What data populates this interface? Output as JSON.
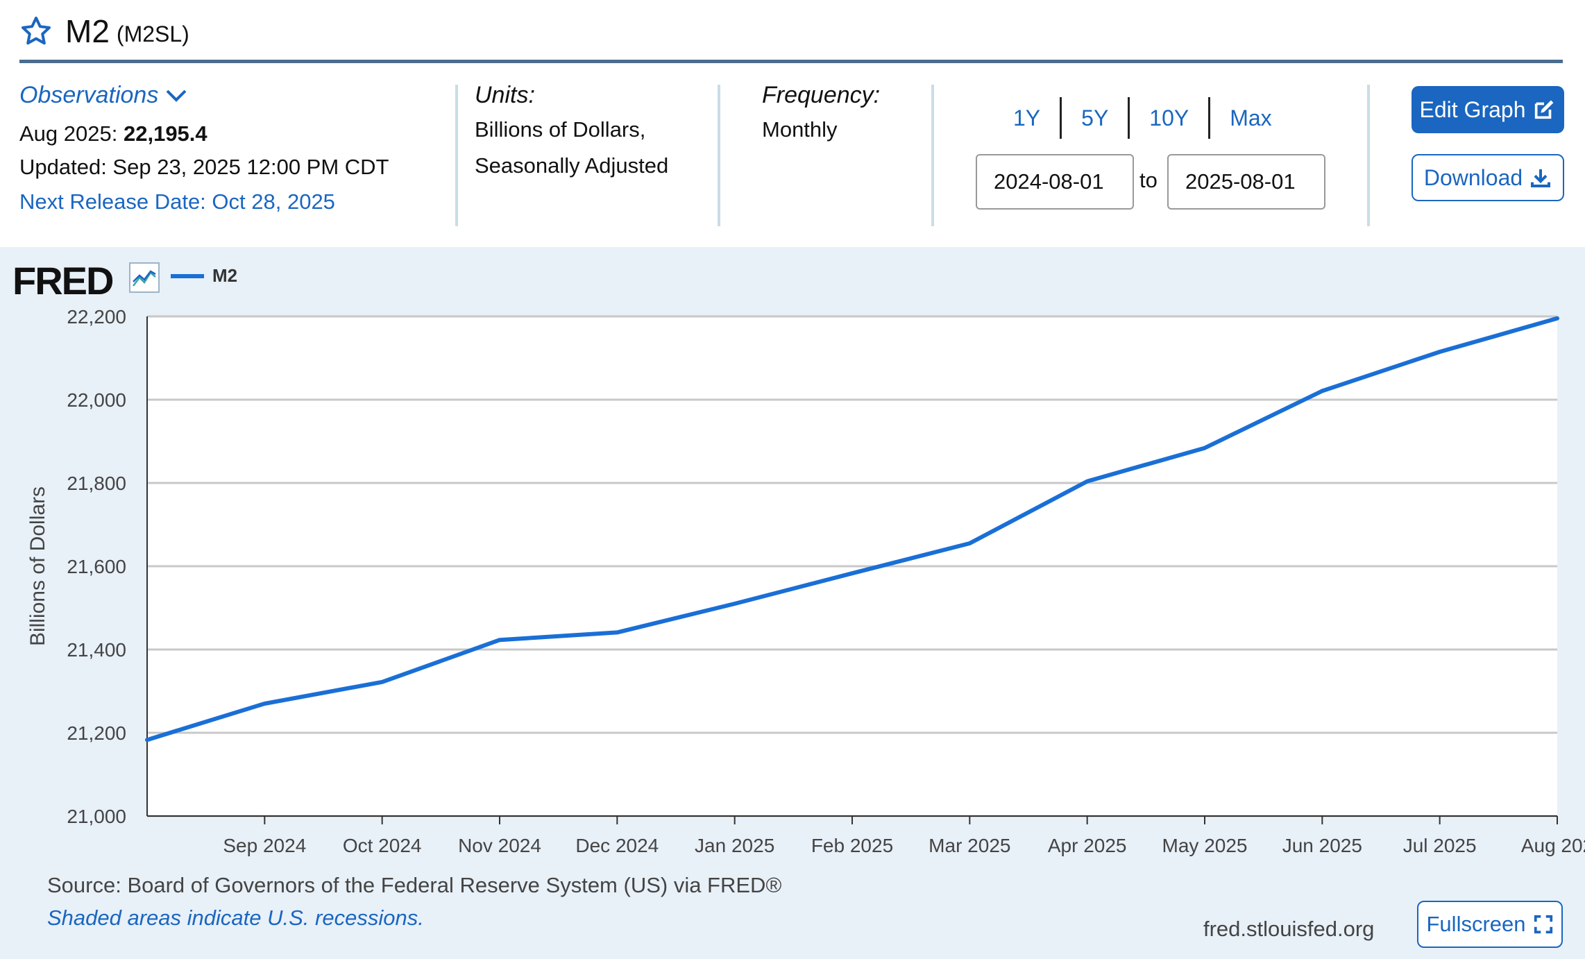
{
  "header": {
    "title": "M2",
    "series_id": "(M2SL)"
  },
  "observations": {
    "toggle_label": "Observations",
    "date_label": "Aug 2025:",
    "value": "22,195.4",
    "updated": "Updated: Sep 23, 2025 12:00 PM CDT",
    "next_release": "Next Release Date: Oct 28, 2025"
  },
  "units": {
    "heading": "Units:",
    "line1": "Billions of Dollars,",
    "line2": "Seasonally Adjusted"
  },
  "frequency": {
    "heading": "Frequency:",
    "value": "Monthly"
  },
  "ranges": [
    "1Y",
    "5Y",
    "10Y",
    "Max"
  ],
  "date_range": {
    "start": "2024-08-01",
    "to_label": "to",
    "end": "2025-08-01"
  },
  "buttons": {
    "edit_graph": "Edit Graph",
    "download": "Download",
    "fullscreen": "Fullscreen"
  },
  "graph": {
    "logo": "FRED",
    "legend": "M2",
    "source": "Source: Board of Governors of the Federal Reserve System (US) via FRED®",
    "recession_note": "Shaded areas indicate U.S. recessions.",
    "site": "fred.stlouisfed.org"
  },
  "colors": {
    "accent": "#1a66c0",
    "series": "#1a6fd6",
    "graph_bg": "#e8f0f8"
  },
  "chart_data": {
    "type": "line",
    "title": "",
    "xlabel": "",
    "ylabel": "Billions of Dollars",
    "ylim": [
      21000,
      22200
    ],
    "yticks": [
      21000,
      21200,
      21400,
      21600,
      21800,
      22000,
      22200
    ],
    "ytick_labels": [
      "21,000",
      "21,200",
      "21,400",
      "21,600",
      "21,800",
      "22,000",
      "22,200"
    ],
    "x": [
      "2024-08-01",
      "2024-09-01",
      "2024-10-01",
      "2024-11-01",
      "2024-12-01",
      "2025-01-01",
      "2025-02-01",
      "2025-03-01",
      "2025-04-01",
      "2025-05-01",
      "2025-06-01",
      "2025-07-01",
      "2025-08-01"
    ],
    "xtick_labels": [
      "Sep 2024",
      "Oct 2024",
      "Nov 2024",
      "Dec 2024",
      "Jan 2025",
      "Feb 2025",
      "Mar 2025",
      "Apr 2025",
      "May 2025",
      "Jun 2025",
      "Jul 2025",
      "Aug 202"
    ],
    "series": [
      {
        "name": "M2",
        "values": [
          21183.0,
          21270.0,
          21322.0,
          21423.0,
          21441.0,
          21510.0,
          21583.0,
          21655.0,
          21804.0,
          21884.0,
          22021.0,
          22115.0,
          22195.4
        ]
      }
    ],
    "grid": true,
    "legend_position": "top-left"
  }
}
